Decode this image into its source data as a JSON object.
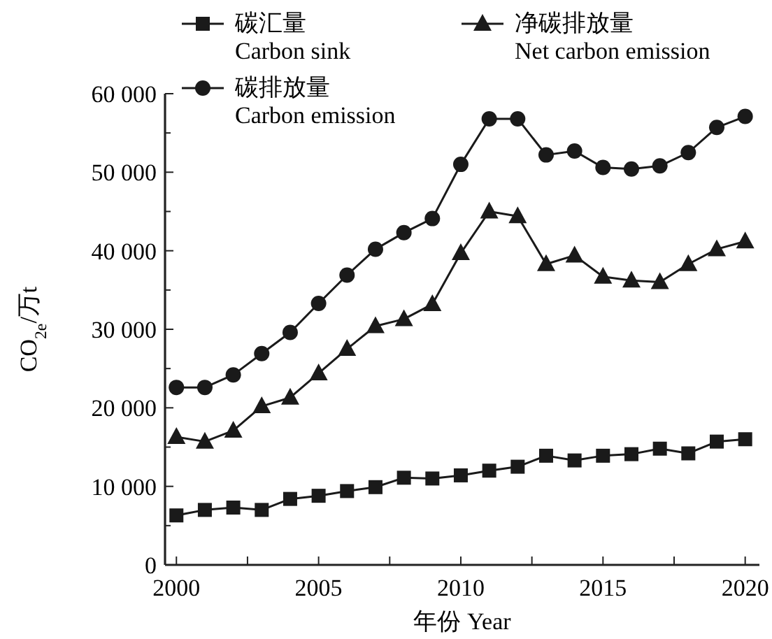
{
  "chart_data": {
    "type": "line",
    "xlabel": "年份 Year",
    "ylabel": "CO$_{2e}$/万t",
    "x": [
      2000,
      2001,
      2002,
      2003,
      2004,
      2005,
      2006,
      2007,
      2008,
      2009,
      2010,
      2011,
      2012,
      2013,
      2014,
      2015,
      2016,
      2017,
      2018,
      2019,
      2020
    ],
    "series": [
      {
        "name": "碳汇量\nCarbon sink",
        "color": "#1a1a1a",
        "marker": "square",
        "values": [
          6300,
          7000,
          7300,
          7000,
          8400,
          8800,
          9400,
          9900,
          11100,
          11000,
          11400,
          12000,
          12500,
          13900,
          13300,
          13900,
          14100,
          14800,
          14200,
          15700,
          16000
        ]
      },
      {
        "name": "净碳排放量\nNet carbon emission",
        "color": "#1a1a1a",
        "marker": "triangle",
        "values": [
          16300,
          15700,
          17100,
          20200,
          21300,
          24400,
          27500,
          30400,
          31300,
          33200,
          39700,
          45000,
          44400,
          38300,
          39400,
          36700,
          36200,
          36000,
          38300,
          40200,
          41200
        ]
      },
      {
        "name": "碳排放量\nCarbon emission",
        "color": "#1a1a1a",
        "marker": "circle",
        "values": [
          22600,
          22600,
          24200,
          26900,
          29600,
          33300,
          36900,
          40200,
          42300,
          44100,
          51000,
          56800,
          56800,
          52200,
          52700,
          50600,
          50400,
          50800,
          52500,
          55700,
          57100
        ]
      }
    ],
    "xlim": [
      1999.6,
      2020.5
    ],
    "xticks": [
      2000,
      {
        "value": 2002.5,
        "label": null
      },
      2005,
      {
        "value": 2007.5,
        "label": null
      },
      2010,
      {
        "value": 2012.5,
        "label": null
      },
      2015,
      {
        "value": 2017.5,
        "label": null
      },
      2020
    ],
    "ylim": [
      0,
      60000
    ],
    "yticks": [
      0,
      {
        "value": 5000,
        "label": null
      },
      {
        "value": 10000,
        "label": "10 000"
      },
      {
        "value": 15000,
        "label": null
      },
      {
        "value": 20000,
        "label": "20 000"
      },
      {
        "value": 25000,
        "label": null
      },
      {
        "value": 30000,
        "label": "30 000"
      },
      {
        "value": 35000,
        "label": null
      },
      {
        "value": 40000,
        "label": "40 000"
      },
      {
        "value": 45000,
        "label": null
      },
      {
        "value": 50000,
        "label": "50 000"
      },
      {
        "value": 55000,
        "label": null
      },
      {
        "value": 60000,
        "label": "60 000"
      }
    ],
    "grid": false,
    "legend": "top left",
    "line_style": "solid"
  }
}
